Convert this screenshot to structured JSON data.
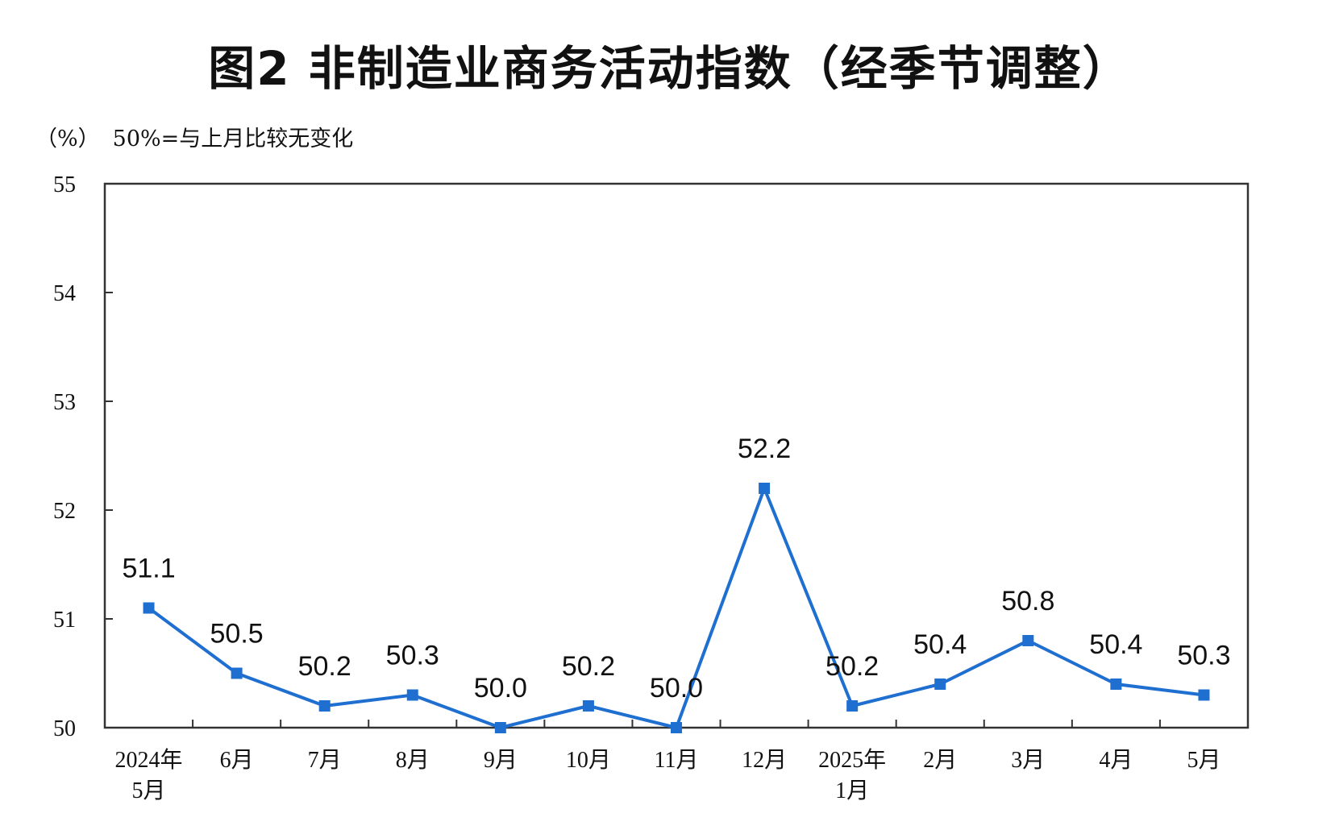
{
  "title": "图2  非制造业商务活动指数（经季节调整）",
  "unit_label": "（%）",
  "note": "50%=与上月比较无变化",
  "chart_data": {
    "type": "line",
    "title": "图2  非制造业商务活动指数（经季节调整）",
    "ylabel": "（%）",
    "annotation": "50%=与上月比较无变化",
    "ylim": [
      50,
      55
    ],
    "yticks": [
      "50",
      "51",
      "52",
      "53",
      "54",
      "55"
    ],
    "categories": [
      [
        "2024年",
        "5月"
      ],
      [
        "6月"
      ],
      [
        "7月"
      ],
      [
        "8月"
      ],
      [
        "9月"
      ],
      [
        "10月"
      ],
      [
        "11月"
      ],
      [
        "12月"
      ],
      [
        "2025年",
        "1月"
      ],
      [
        "2月"
      ],
      [
        "3月"
      ],
      [
        "4月"
      ],
      [
        "5月"
      ]
    ],
    "values": [
      51.1,
      50.5,
      50.2,
      50.3,
      50.0,
      50.2,
      50.0,
      52.2,
      50.2,
      50.4,
      50.8,
      50.4,
      50.3
    ],
    "value_labels": [
      "51.1",
      "50.5",
      "50.2",
      "50.3",
      "50.0",
      "50.2",
      "50.0",
      "52.2",
      "50.2",
      "50.4",
      "50.8",
      "50.4",
      "50.3"
    ],
    "line_color": "#1f6fd1",
    "marker": "square",
    "grid": false
  }
}
